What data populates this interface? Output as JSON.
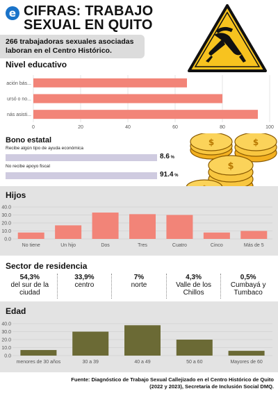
{
  "header": {
    "logo_letter": "e",
    "title_line1": "CIFRAS: TRABAJO",
    "title_line2": "SEXUAL EN QUITO",
    "subtitle": "266 trabajadoras sexuales asociadas laboran en el Centro Histórico."
  },
  "colors": {
    "education_bar": "#f28478",
    "bono_bar": "#cfcbe0",
    "hijos_bar": "#f28478",
    "edad_bar": "#6b6a35",
    "section_bg": "#e3e3e3"
  },
  "icons": {
    "warning_sign": "warning-sign-icon",
    "coins": "coins-icon"
  },
  "chart_data": [
    {
      "id": "educacion",
      "type": "bar",
      "orientation": "horizontal",
      "title": "Nivel educativo",
      "categories": [
        "ación bás...",
        "ursó o no...",
        "nás asisti..."
      ],
      "values": [
        65,
        80,
        95
      ],
      "xlim": [
        0,
        100
      ],
      "xticks": [
        "0",
        "20",
        "40",
        "60",
        "80",
        "100"
      ],
      "grid": true
    },
    {
      "id": "bono",
      "type": "bar",
      "orientation": "horizontal",
      "title": "Bono estatal",
      "categories": [
        "Recibe algún tipo de ayuda económica",
        "No recibe apoyo fiscal"
      ],
      "values": [
        8.6,
        91.4
      ],
      "value_labels": [
        "8.6",
        "91.4"
      ],
      "unit": "%"
    },
    {
      "id": "hijos",
      "type": "bar",
      "title": "Hijos",
      "categories": [
        "No tiene",
        "Un hijo",
        "Dos",
        "Tres",
        "Cuatro",
        "Cinco",
        "Más de 5"
      ],
      "values": [
        8,
        17,
        33,
        31,
        30,
        8,
        10
      ],
      "ylim": [
        0,
        40
      ],
      "yticks": [
        "0.0",
        "10.0",
        "20.0",
        "30.0",
        "40.0"
      ],
      "grid": true
    },
    {
      "id": "edad",
      "type": "bar",
      "title": "Edad",
      "categories": [
        "menores de 30 años",
        "30 a 39",
        "40 a 49",
        "50 a 60",
        "Mayores de 60"
      ],
      "values": [
        7,
        30,
        38,
        20,
        6
      ],
      "ylim": [
        0,
        40
      ],
      "yticks": [
        "0.0",
        "10.0",
        "20.0",
        "30.0",
        "40.0"
      ],
      "grid": true
    }
  ],
  "residencia": {
    "title": "Sector de residencia",
    "items": [
      {
        "pct": "54,3%",
        "label": "del sur de la ciudad"
      },
      {
        "pct": "33,9%",
        "label": "centro"
      },
      {
        "pct": "7%",
        "label": "norte"
      },
      {
        "pct": "4,3%",
        "label": "Valle de los Chillos"
      },
      {
        "pct": "0,5%",
        "label": "Cumbayá y Tumbaco"
      }
    ]
  },
  "source": "Fuente: Diagnóstico de Trabajo Sexual Callejizado en el Centro Histórico de Quito (2022 y 2023), Secretaría de Inclusión Social DMQ."
}
